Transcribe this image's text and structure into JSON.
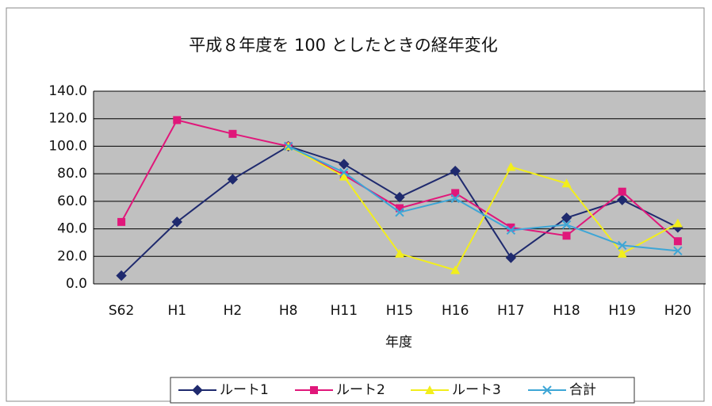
{
  "chart_data": {
    "type": "line",
    "title": "平成８年度を 100 としたときの経年変化",
    "x_label": "年度",
    "categories": [
      "S62",
      "H1",
      "H2",
      "H8",
      "H11",
      "H15",
      "H16",
      "H17",
      "H18",
      "H19",
      "H20"
    ],
    "series": [
      {
        "name": "ルート1",
        "color": "#1f2a6e",
        "marker": "diamond",
        "values": [
          6,
          45,
          76,
          100,
          87,
          63,
          82,
          19,
          48,
          61,
          41
        ]
      },
      {
        "name": "ルート2",
        "color": "#e0177a",
        "marker": "square",
        "values": [
          45,
          119,
          109,
          100,
          79,
          55,
          66,
          41,
          35,
          67,
          31
        ]
      },
      {
        "name": "ルート3",
        "color": "#f2ee1c",
        "marker": "triangle",
        "values": [
          null,
          null,
          null,
          100,
          78,
          22,
          10,
          85,
          73,
          22,
          44
        ]
      },
      {
        "name": "合計",
        "color": "#3ea6d6",
        "marker": "x",
        "values": [
          null,
          null,
          null,
          100,
          81,
          52,
          62,
          39,
          43,
          28,
          24
        ]
      }
    ],
    "ylim": [
      0,
      140
    ],
    "yticks": [
      {
        "value": 0,
        "label": "0.0"
      },
      {
        "value": 20,
        "label": "20.0"
      },
      {
        "value": 40,
        "label": "40.0"
      },
      {
        "value": 60,
        "label": "60.0"
      },
      {
        "value": 80,
        "label": "80.0"
      },
      {
        "value": 100,
        "label": "100.0"
      },
      {
        "value": 120,
        "label": "120.0"
      },
      {
        "value": 140,
        "label": "140.0"
      }
    ],
    "grid": true,
    "legend": "bottom"
  }
}
